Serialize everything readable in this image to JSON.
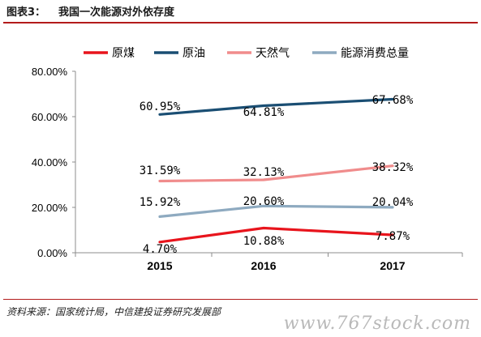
{
  "figure": {
    "label": "图表3：",
    "title": "我国一次能源对外依存度",
    "source": "资料来源：国家统计局，中信建投证券研究发展部",
    "watermark": "www.767stock.com"
  },
  "colors": {
    "accent_rule": "#b31b1b"
  },
  "chart_data": {
    "type": "line",
    "title": "",
    "xlabel": "",
    "ylabel": "",
    "x": [
      "2015",
      "2016",
      "2017"
    ],
    "ylim": [
      0,
      80
    ],
    "y_ticks": [
      "0.00%",
      "20.00%",
      "40.00%",
      "60.00%",
      "80.00%"
    ],
    "grid": false,
    "legend_position": "top",
    "series": [
      {
        "name": "原煤",
        "color": "#e8141c",
        "values": [
          4.7,
          10.88,
          7.87
        ],
        "labels": [
          "4.70%",
          "10.88%",
          "7.87%"
        ]
      },
      {
        "name": "原油",
        "color": "#1a4e73",
        "values": [
          60.95,
          64.81,
          67.68
        ],
        "labels": [
          "60.95%",
          "64.81%",
          "67.68%"
        ]
      },
      {
        "name": "天然气",
        "color": "#f08c8c",
        "values": [
          31.59,
          32.13,
          38.32
        ],
        "labels": [
          "31.59%",
          "32.13%",
          "38.32%"
        ]
      },
      {
        "name": "能源消费总量",
        "color": "#8eaac0",
        "values": [
          15.92,
          20.6,
          20.04
        ],
        "labels": [
          "15.92%",
          "20.60%",
          "20.04%"
        ]
      }
    ]
  }
}
